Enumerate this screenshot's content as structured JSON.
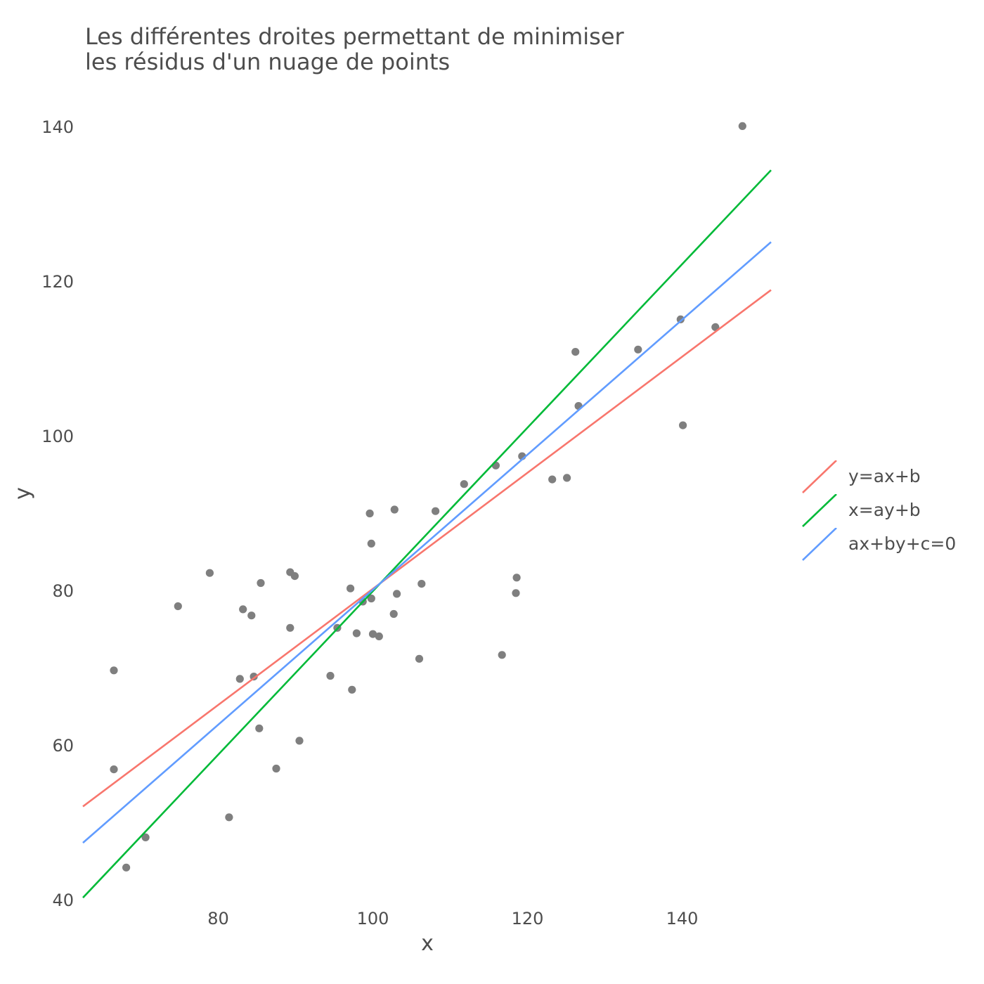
{
  "chart_data": {
    "type": "scatter",
    "title_lines": [
      "Les différentes droites permettant de minimiser",
      "les résidus d'un nuage de points"
    ],
    "xlabel": "x",
    "ylabel": "y",
    "xlim": [
      62.5,
      151.5
    ],
    "ylim": [
      38.5,
      142.5
    ],
    "x_ticks": [
      80,
      100,
      120,
      140
    ],
    "y_ticks": [
      40,
      60,
      80,
      100,
      120,
      140
    ],
    "grid": false,
    "legend_position": "right",
    "point_color": "#7f7f7f",
    "points": [
      [
        66.5,
        69.7
      ],
      [
        66.5,
        56.9
      ],
      [
        68.1,
        44.2
      ],
      [
        70.6,
        48.1
      ],
      [
        74.8,
        78.0
      ],
      [
        78.9,
        82.3
      ],
      [
        81.4,
        50.7
      ],
      [
        82.8,
        68.6
      ],
      [
        83.2,
        77.6
      ],
      [
        84.3,
        76.8
      ],
      [
        84.6,
        68.9
      ],
      [
        85.3,
        62.2
      ],
      [
        85.5,
        81.0
      ],
      [
        87.5,
        57.0
      ],
      [
        89.3,
        82.4
      ],
      [
        89.3,
        75.2
      ],
      [
        89.9,
        81.9
      ],
      [
        90.5,
        60.6
      ],
      [
        94.5,
        69.0
      ],
      [
        95.4,
        75.2
      ],
      [
        97.1,
        80.3
      ],
      [
        97.3,
        67.2
      ],
      [
        97.9,
        74.5
      ],
      [
        98.7,
        78.6
      ],
      [
        99.6,
        90.0
      ],
      [
        99.8,
        79.0
      ],
      [
        99.8,
        86.1
      ],
      [
        100.0,
        74.4
      ],
      [
        100.8,
        74.1
      ],
      [
        102.7,
        77.0
      ],
      [
        102.8,
        90.5
      ],
      [
        103.1,
        79.6
      ],
      [
        106.0,
        71.2
      ],
      [
        106.3,
        80.9
      ],
      [
        108.1,
        90.3
      ],
      [
        111.8,
        93.8
      ],
      [
        115.9,
        96.2
      ],
      [
        116.7,
        71.7
      ],
      [
        118.5,
        79.7
      ],
      [
        118.6,
        81.7
      ],
      [
        119.3,
        97.4
      ],
      [
        123.2,
        94.4
      ],
      [
        125.1,
        94.6
      ],
      [
        126.2,
        110.9
      ],
      [
        126.6,
        103.9
      ],
      [
        134.3,
        111.2
      ],
      [
        139.8,
        115.1
      ],
      [
        140.1,
        101.4
      ],
      [
        144.3,
        114.1
      ],
      [
        147.8,
        140.1
      ]
    ],
    "series": [
      {
        "name": "y=ax+b",
        "color": "#f8766d",
        "x": [
          62.5,
          151.5
        ],
        "y": [
          52.1,
          118.9
        ]
      },
      {
        "name": "x=ay+b",
        "color": "#00ba38",
        "x": [
          62.5,
          151.5
        ],
        "y": [
          40.3,
          134.4
        ]
      },
      {
        "name": "ax+by+c=0",
        "color": "#619cff",
        "x": [
          62.5,
          151.5
        ],
        "y": [
          47.4,
          125.1
        ]
      }
    ]
  }
}
